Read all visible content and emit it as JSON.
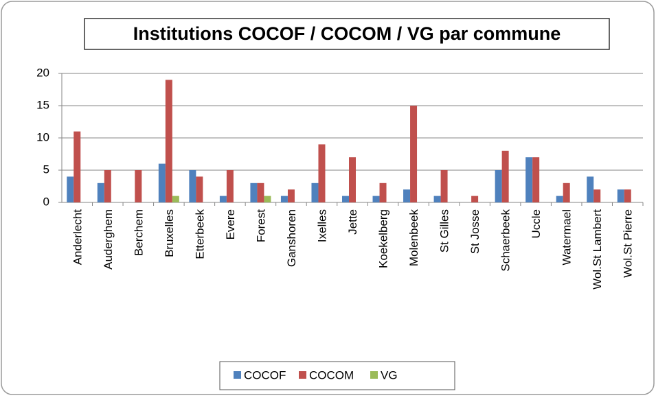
{
  "chart_data": {
    "type": "bar",
    "title": "Institutions COCOF / COCOM / VG par commune",
    "categories": [
      "Anderlecht",
      "Auderghem",
      "Berchem",
      "Bruxelles",
      "Etterbeek",
      "Evere",
      "Forest",
      "Ganshoren",
      "Ixelles",
      "Jette",
      "Koekelberg",
      "Molenbeek",
      "St Gilles",
      "St Josse",
      "Schaerbeek",
      "Uccle",
      "Watermael",
      "Wol.St Lambert",
      "Wol.St Pierre"
    ],
    "series": [
      {
        "name": "COCOF",
        "color": "#4f81bd",
        "values": [
          4,
          3,
          0,
          6,
          5,
          1,
          3,
          1,
          3,
          1,
          1,
          2,
          1,
          0,
          5,
          7,
          1,
          4,
          2
        ]
      },
      {
        "name": "COCOM",
        "color": "#c0504d",
        "values": [
          11,
          5,
          5,
          19,
          4,
          5,
          3,
          2,
          9,
          7,
          3,
          15,
          5,
          1,
          8,
          7,
          3,
          2,
          2
        ]
      },
      {
        "name": "VG",
        "color": "#9bbb59",
        "values": [
          0,
          0,
          0,
          1,
          0,
          0,
          1,
          0,
          0,
          0,
          0,
          0,
          0,
          0,
          0,
          0,
          0,
          0,
          0
        ]
      }
    ],
    "ylim": [
      0,
      20
    ],
    "yticks": [
      0,
      5,
      10,
      15,
      20
    ],
    "grid": true,
    "legend": "bottom"
  }
}
